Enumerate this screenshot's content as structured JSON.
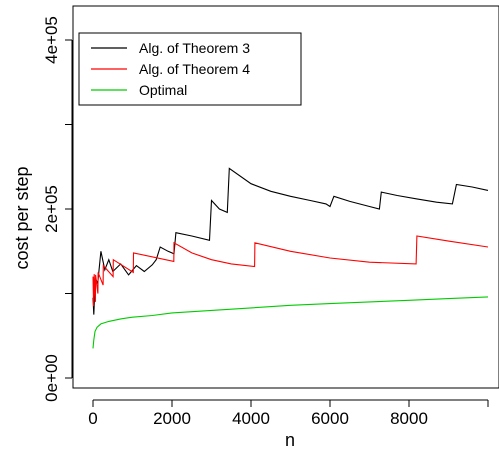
{
  "chart_data": {
    "type": "line",
    "title": "",
    "xlabel": "n",
    "ylabel": "cost per step",
    "xlim": [
      0,
      10000
    ],
    "ylim": [
      0,
      400000
    ],
    "x_ticks": [
      0,
      2000,
      4000,
      6000,
      8000,
      10000
    ],
    "x_tick_labels": [
      "0",
      "2000",
      "4000",
      "6000",
      "8000",
      ""
    ],
    "y_ticks": [
      0,
      100000,
      200000,
      300000,
      400000
    ],
    "y_tick_labels": [
      "0e+00",
      "",
      "2e+05",
      "",
      "4e+05"
    ],
    "legend_position": "top-left",
    "grid": false,
    "series": [
      {
        "name": "Alg. of Theorem 3",
        "color": "#000000",
        "points": [
          [
            0,
            95000
          ],
          [
            20,
            75000
          ],
          [
            60,
            118000
          ],
          [
            120,
            112000
          ],
          [
            200,
            150000
          ],
          [
            300,
            128000
          ],
          [
            400,
            140000
          ],
          [
            500,
            126000
          ],
          [
            700,
            135000
          ],
          [
            900,
            122000
          ],
          [
            1100,
            133000
          ],
          [
            1300,
            126000
          ],
          [
            1500,
            134000
          ],
          [
            1600,
            140000
          ],
          [
            1700,
            155000
          ],
          [
            1900,
            150000
          ],
          [
            2050,
            147000
          ],
          [
            2100,
            172000
          ],
          [
            2500,
            168000
          ],
          [
            2950,
            163000
          ],
          [
            3000,
            210000
          ],
          [
            3200,
            200000
          ],
          [
            3400,
            196000
          ],
          [
            3450,
            248000
          ],
          [
            4000,
            230000
          ],
          [
            4500,
            221000
          ],
          [
            5000,
            215000
          ],
          [
            5500,
            210000
          ],
          [
            5900,
            206000
          ],
          [
            6000,
            203000
          ],
          [
            6100,
            215000
          ],
          [
            6500,
            209000
          ],
          [
            7000,
            203000
          ],
          [
            7250,
            200000
          ],
          [
            7300,
            220000
          ],
          [
            7700,
            216000
          ],
          [
            8200,
            212000
          ],
          [
            8700,
            208000
          ],
          [
            9100,
            206000
          ],
          [
            9200,
            229000
          ],
          [
            9600,
            226000
          ],
          [
            10000,
            222000
          ]
        ]
      },
      {
        "name": "Alg. of Theorem 4",
        "color": "#ff0000",
        "points": [
          [
            0,
            120000
          ],
          [
            15,
            85000
          ],
          [
            30,
            123000
          ],
          [
            60,
            90000
          ],
          [
            65,
            122000
          ],
          [
            125,
            100000
          ],
          [
            130,
            125000
          ],
          [
            255,
            110000
          ],
          [
            260,
            133000
          ],
          [
            510,
            120000
          ],
          [
            515,
            140000
          ],
          [
            1020,
            125000
          ],
          [
            1025,
            148000
          ],
          [
            2045,
            138000
          ],
          [
            2050,
            160000
          ],
          [
            2500,
            148000
          ],
          [
            3000,
            140000
          ],
          [
            3500,
            135000
          ],
          [
            4090,
            132000
          ],
          [
            4100,
            160000
          ],
          [
            5000,
            150000
          ],
          [
            6000,
            142000
          ],
          [
            7000,
            137000
          ],
          [
            8180,
            135000
          ],
          [
            8200,
            168000
          ],
          [
            9000,
            162000
          ],
          [
            10000,
            155000
          ]
        ]
      },
      {
        "name": "Optimal",
        "color": "#00cc00",
        "points": [
          [
            0,
            35000
          ],
          [
            20,
            45000
          ],
          [
            50,
            55000
          ],
          [
            100,
            60000
          ],
          [
            200,
            64000
          ],
          [
            400,
            67000
          ],
          [
            700,
            70000
          ],
          [
            1000,
            72000
          ],
          [
            1500,
            74000
          ],
          [
            2000,
            77000
          ],
          [
            3000,
            80000
          ],
          [
            4000,
            83000
          ],
          [
            5000,
            86000
          ],
          [
            6000,
            88000
          ],
          [
            7000,
            90000
          ],
          [
            8000,
            92000
          ],
          [
            9000,
            94000
          ],
          [
            10000,
            96000
          ]
        ]
      }
    ]
  }
}
